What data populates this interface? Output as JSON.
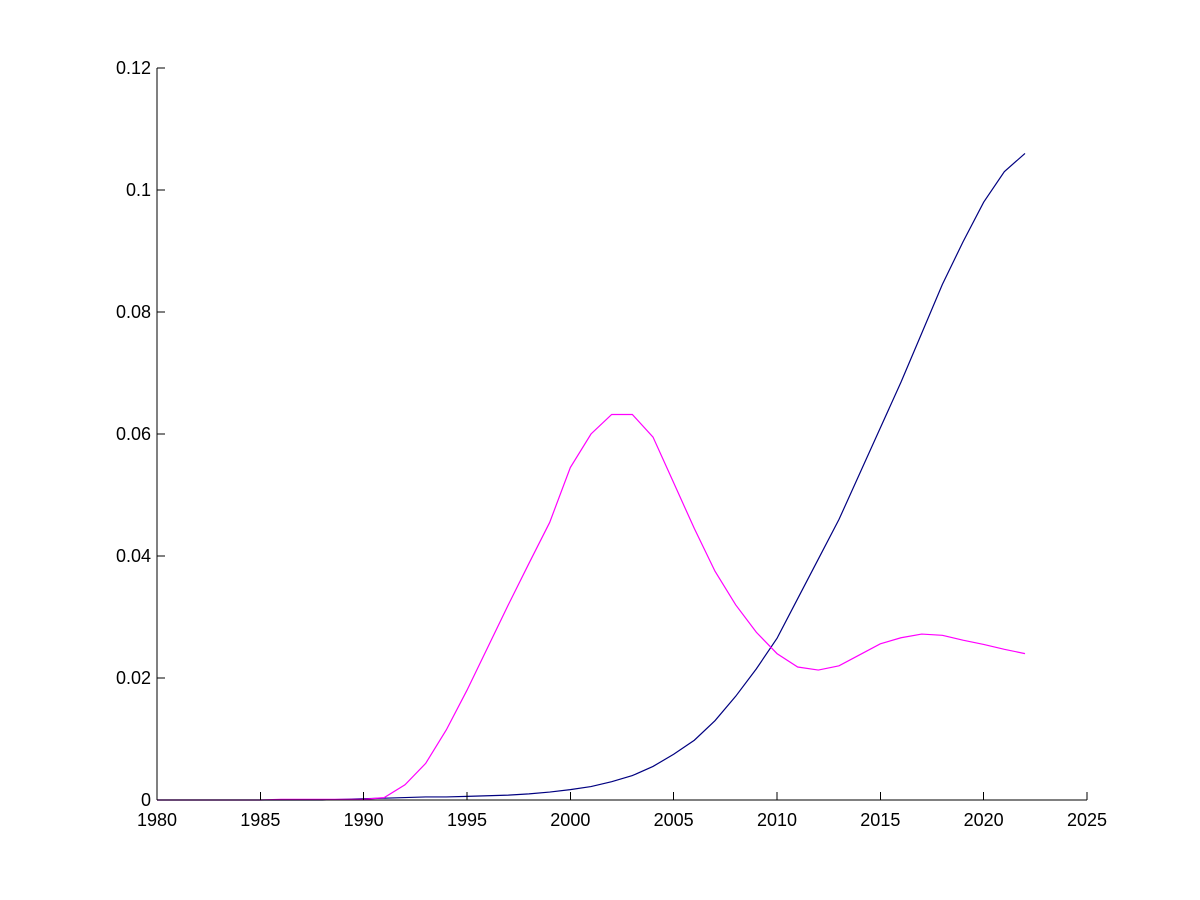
{
  "chart_data": {
    "type": "line",
    "title": "",
    "xlabel": "",
    "ylabel": "",
    "xlim": [
      1980,
      2025
    ],
    "ylim": [
      0,
      0.12
    ],
    "x_ticks": [
      "1980",
      "1985",
      "1990",
      "1995",
      "2000",
      "2005",
      "2010",
      "2015",
      "2020",
      "2025"
    ],
    "y_ticks": [
      "0",
      "0.02",
      "0.04",
      "0.06",
      "0.08",
      "0.1",
      "0.12"
    ],
    "grid": false,
    "legend": "none",
    "x": [
      1980,
      1981,
      1982,
      1983,
      1984,
      1985,
      1986,
      1987,
      1988,
      1989,
      1990,
      1991,
      1992,
      1993,
      1994,
      1995,
      1996,
      1997,
      1998,
      1999,
      2000,
      2001,
      2002,
      2003,
      2004,
      2005,
      2006,
      2007,
      2008,
      2009,
      2010,
      2011,
      2012,
      2013,
      2014,
      2015,
      2016,
      2017,
      2018,
      2019,
      2020,
      2021,
      2022
    ],
    "series": [
      {
        "color": "#000080",
        "values": [
          0,
          0,
          0,
          0,
          0,
          0,
          0,
          0,
          0,
          0.0001,
          0.0002,
          0.0003,
          0.0004,
          0.0005,
          0.0005,
          0.0006,
          0.0007,
          0.0008,
          0.001,
          0.0013,
          0.0017,
          0.0022,
          0.003,
          0.004,
          0.0055,
          0.0075,
          0.0098,
          0.013,
          0.017,
          0.0215,
          0.0265,
          0.033,
          0.0395,
          0.046,
          0.0535,
          0.061,
          0.0685,
          0.0765,
          0.0845,
          0.0915,
          0.098,
          0.103,
          0.106
        ]
      },
      {
        "color": "#ff00ff",
        "values": [
          0,
          0,
          0,
          0,
          0,
          0,
          0.0001,
          0.0001,
          0.0001,
          0.0001,
          0.0001,
          0.0004,
          0.0025,
          0.006,
          0.0115,
          0.018,
          0.025,
          0.032,
          0.0388,
          0.0455,
          0.0545,
          0.06,
          0.0632,
          0.0632,
          0.0595,
          0.052,
          0.0445,
          0.0375,
          0.032,
          0.0275,
          0.024,
          0.0218,
          0.0213,
          0.022,
          0.0238,
          0.0256,
          0.0266,
          0.0272,
          0.027,
          0.0262,
          0.0255,
          0.0247,
          0.024
        ]
      }
    ]
  }
}
